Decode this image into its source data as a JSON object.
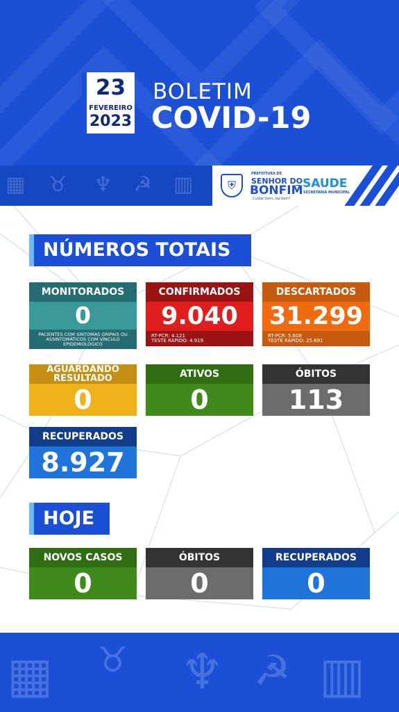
{
  "header": {
    "date_day": "23",
    "date_month": "FEVEREIRO",
    "date_year": "2023",
    "title_line1": "BOLETIM",
    "title_line2": "COVID-19"
  },
  "logos": {
    "prefeitura": "PREFEITURA DE",
    "city_line1": "SENHOR DO",
    "city_line2": "BONFIM",
    "slogan": "Cuidar bem, faz bem!",
    "health": "SAUDE",
    "health_sub": "SECRETARIA MUNICIPAL"
  },
  "totals": {
    "section_title": "NÚMEROS TOTAIS",
    "monitorados": {
      "label": "MONITORADOS",
      "value": "0",
      "note": "PACIENTES COM SINTOMAS GRIPAIS OU ASSINTOMÁTICOS COM VÍNCULO EPIDEMIOLÓGICO"
    },
    "confirmados": {
      "label": "CONFIRMADOS",
      "value": "9.040",
      "line1": "RT-PCR: 4.121",
      "line2": "TESTE RÁPIDO: 4.919"
    },
    "descartados": {
      "label": "DESCARTADOS",
      "value": "31.299",
      "line1": "RT-PCR: 5.608",
      "line2": "TESTE RÁPIDO: 25.691"
    },
    "aguardando": {
      "label_line1": "AGUARDANDO",
      "label_line2": "RESULTADO",
      "value": "0"
    },
    "ativos": {
      "label": "ATIVOS",
      "value": "0"
    },
    "obitos": {
      "label": "ÓBITOS",
      "value": "113"
    },
    "recuperados": {
      "label": "RECUPERADOS",
      "value": "8.927"
    }
  },
  "today": {
    "section_title": "HOJE",
    "novos_casos": {
      "label": "NOVOS CASOS",
      "value": "0"
    },
    "obitos": {
      "label": "ÓBITOS",
      "value": "0"
    },
    "recuperados": {
      "label": "RECUPERADOS",
      "value": "0"
    }
  },
  "colors": {
    "brand_blue": "#1a4fd6",
    "teal": "#3a9a9a",
    "red": "#e01e1e",
    "orange": "#f06a10",
    "yellow": "#f0b21a",
    "green": "#3f8a1a",
    "gray": "#6c6c6c",
    "blue": "#1f73d9"
  },
  "icons": [
    "accordion-icon",
    "cactus-icon",
    "hammer-sickle-icon",
    "bull-icon",
    "building-icon",
    "crest-icon"
  ]
}
